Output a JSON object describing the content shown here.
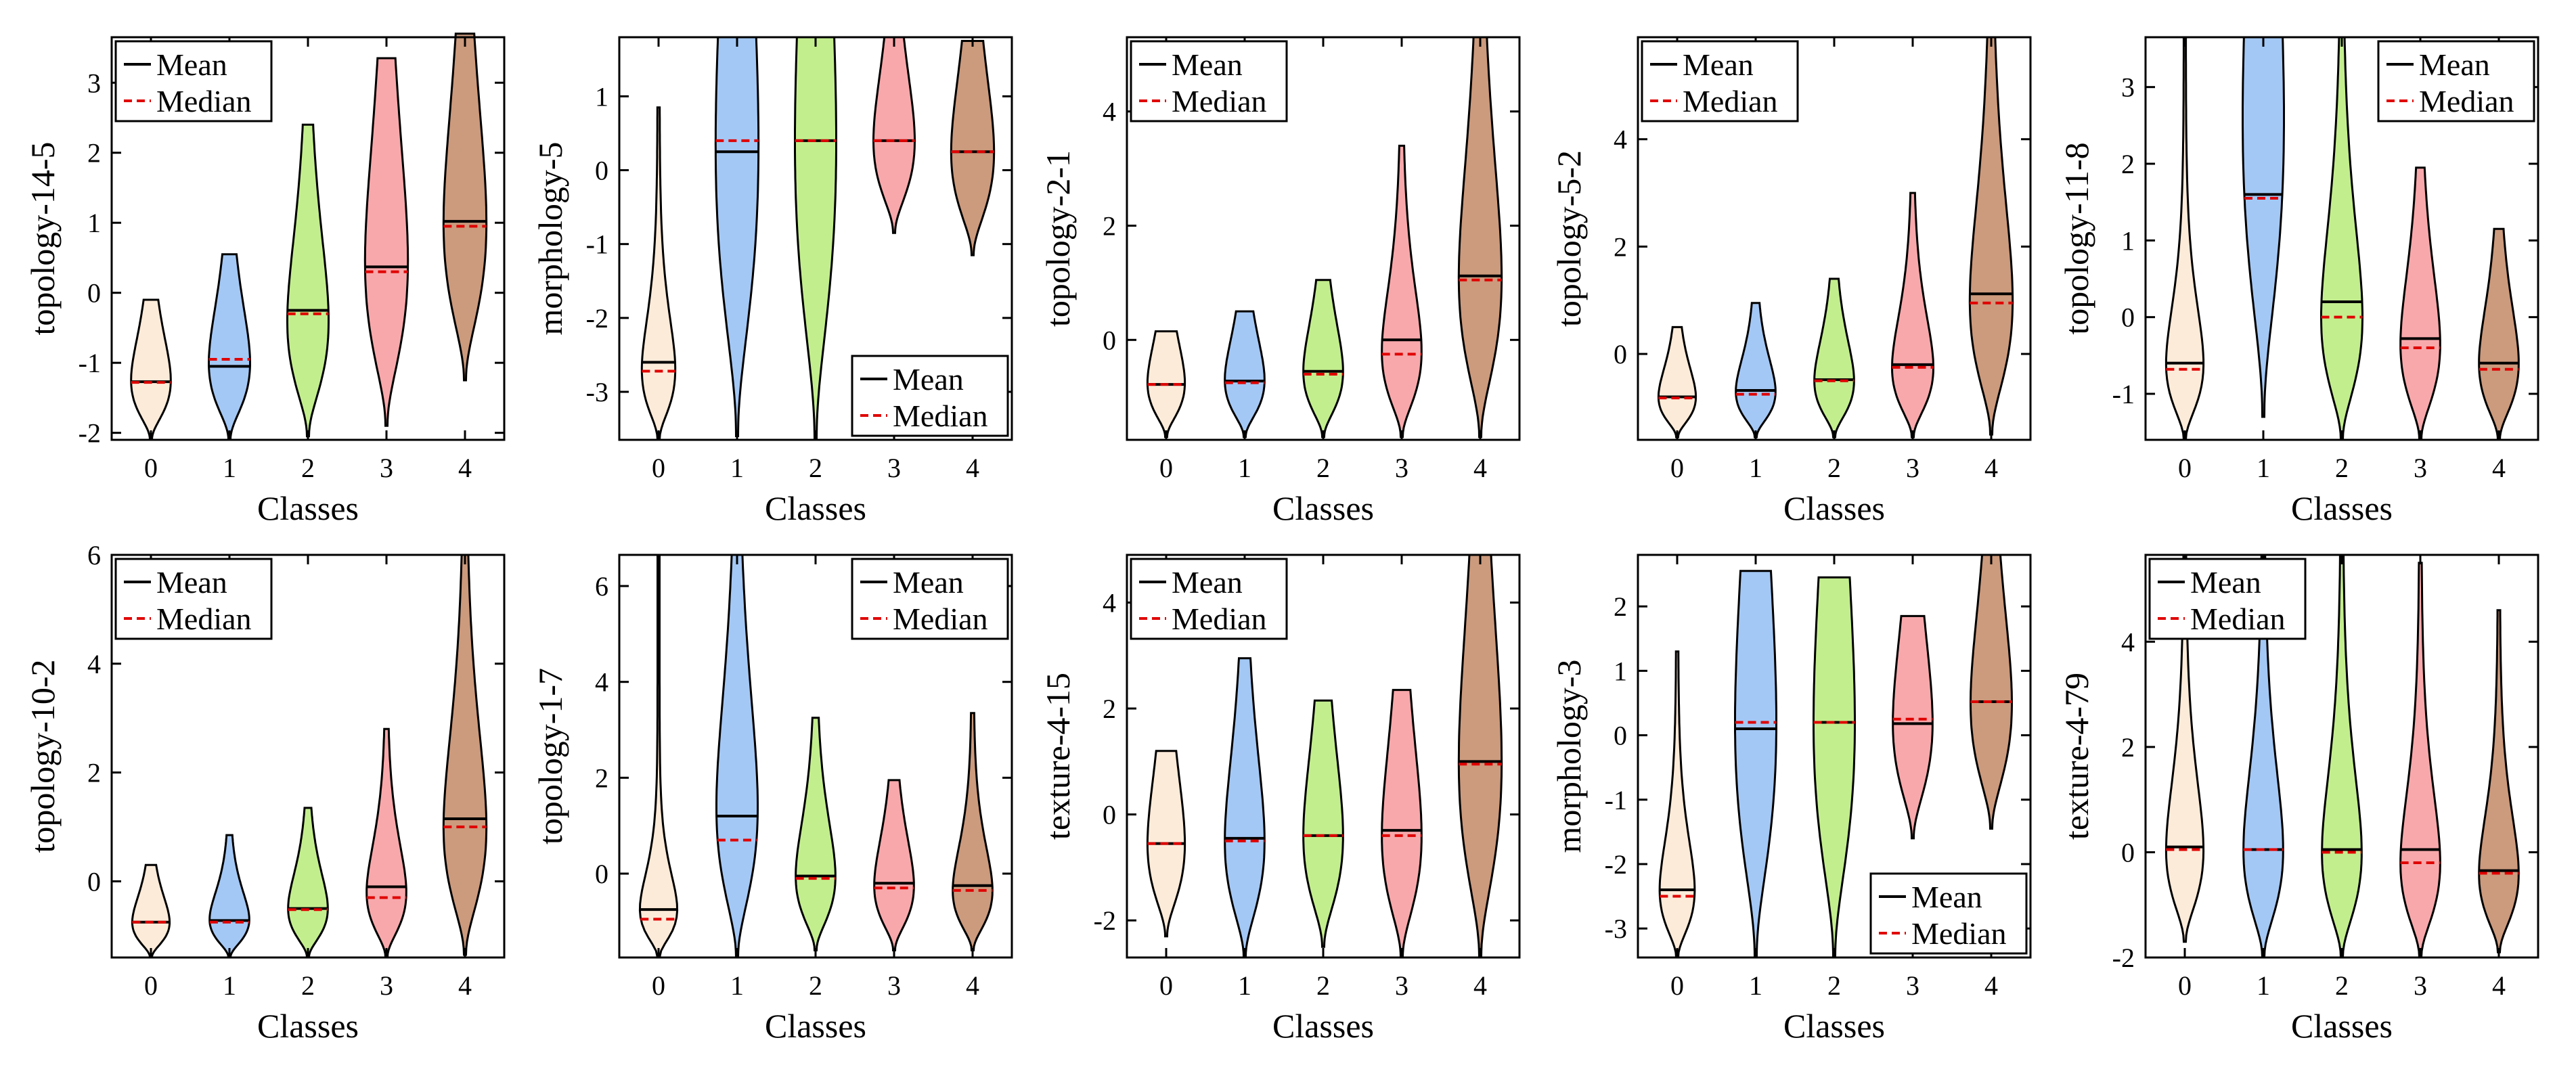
{
  "colors": {
    "class0": "#FDEBD9",
    "class1": "#A4C8F5",
    "class2": "#C3EE8E",
    "class3": "#F8A8AB",
    "class4": "#CC9A7D",
    "mean": "#000000",
    "median": "#E00000"
  },
  "chart_data": [
    {
      "type": "violin",
      "ylabel": "topology-14-5",
      "xlabel": "Classes",
      "categories": [
        "0",
        "1",
        "2",
        "3",
        "4"
      ],
      "ylim": [
        -2.1,
        3.65
      ],
      "yticks": [
        -2,
        -1,
        0,
        1,
        2,
        3
      ],
      "legend_position": "top-left",
      "legend": [
        "Mean",
        "Median"
      ],
      "series": [
        {
          "class": "0",
          "min": -2.1,
          "max": -0.1,
          "mode": -1.25,
          "width": 0.48,
          "skew": 0.4,
          "mean": -1.27,
          "median": -1.28
        },
        {
          "class": "1",
          "min": -2.1,
          "max": 0.55,
          "mode": -1.0,
          "width": 0.5,
          "skew": 0.45,
          "mean": -1.05,
          "median": -0.95
        },
        {
          "class": "2",
          "min": -2.05,
          "max": 2.4,
          "mode": -0.4,
          "width": 0.5,
          "skew": 0.55,
          "mean": -0.25,
          "median": -0.3
        },
        {
          "class": "3",
          "min": -1.9,
          "max": 3.35,
          "mode": 0.45,
          "width": 0.52,
          "skew": 0.5,
          "mean": 0.37,
          "median": 0.3
        },
        {
          "class": "4",
          "min": -1.25,
          "max": 3.7,
          "mode": 1.0,
          "width": 0.52,
          "skew": 0.5,
          "mean": 1.02,
          "median": 0.95
        }
      ]
    },
    {
      "type": "violin",
      "ylabel": "morphology-5",
      "xlabel": "Classes",
      "categories": [
        "0",
        "1",
        "2",
        "3",
        "4"
      ],
      "ylim": [
        -3.65,
        1.8
      ],
      "yticks": [
        -3,
        -2,
        -1,
        0,
        1
      ],
      "legend_position": "bottom-right",
      "legend": [
        "Mean",
        "Median"
      ],
      "series": [
        {
          "class": "0",
          "min": -3.65,
          "max": 0.85,
          "mode": -2.7,
          "width": 0.4,
          "skew": 0.35,
          "mean": -2.6,
          "median": -2.72
        },
        {
          "class": "1",
          "min": -3.6,
          "max": 1.8,
          "mode": 0.35,
          "width": 0.52,
          "skew": 0.5,
          "mean": 0.25,
          "median": 0.4
        },
        {
          "class": "2",
          "min": -3.65,
          "max": 1.8,
          "mode": 0.4,
          "width": 0.5,
          "skew": 0.5,
          "mean": 0.4,
          "median": 0.4
        },
        {
          "class": "3",
          "min": -0.85,
          "max": 1.8,
          "mode": 0.4,
          "width": 0.5,
          "skew": 0.5,
          "mean": 0.4,
          "median": 0.4
        },
        {
          "class": "4",
          "min": -1.15,
          "max": 1.75,
          "mode": 0.25,
          "width": 0.52,
          "skew": 0.5,
          "mean": 0.25,
          "median": 0.25
        }
      ]
    },
    {
      "type": "violin",
      "ylabel": "topology-2-1",
      "xlabel": "Classes",
      "categories": [
        "0",
        "1",
        "2",
        "3",
        "4"
      ],
      "ylim": [
        -1.75,
        5.3
      ],
      "yticks": [
        0,
        2,
        4
      ],
      "legend_position": "top-left",
      "legend": [
        "Mean",
        "Median"
      ],
      "series": [
        {
          "class": "0",
          "min": -1.7,
          "max": 0.15,
          "mode": -0.75,
          "width": 0.45,
          "skew": 0.5,
          "mean": -0.78,
          "median": -0.78
        },
        {
          "class": "1",
          "min": -1.7,
          "max": 0.5,
          "mode": -0.7,
          "width": 0.48,
          "skew": 0.5,
          "mean": -0.72,
          "median": -0.75
        },
        {
          "class": "2",
          "min": -1.7,
          "max": 1.05,
          "mode": -0.55,
          "width": 0.48,
          "skew": 0.5,
          "mean": -0.55,
          "median": -0.6
        },
        {
          "class": "3",
          "min": -1.7,
          "max": 3.4,
          "mode": -0.2,
          "width": 0.48,
          "skew": 0.55,
          "mean": 0.0,
          "median": -0.25
        },
        {
          "class": "4",
          "min": -1.7,
          "max": 5.3,
          "mode": 1.1,
          "width": 0.52,
          "skew": 0.5,
          "mean": 1.12,
          "median": 1.05
        }
      ]
    },
    {
      "type": "violin",
      "ylabel": "topology-5-2",
      "xlabel": "Classes",
      "categories": [
        "0",
        "1",
        "2",
        "3",
        "4"
      ],
      "ylim": [
        -1.6,
        5.9
      ],
      "yticks": [
        0,
        2,
        4
      ],
      "legend_position": "top-left",
      "legend": [
        "Mean",
        "Median"
      ],
      "series": [
        {
          "class": "0",
          "min": -1.55,
          "max": 0.5,
          "mode": -0.8,
          "width": 0.45,
          "skew": 0.5,
          "mean": -0.8,
          "median": -0.82
        },
        {
          "class": "1",
          "min": -1.55,
          "max": 0.95,
          "mode": -0.7,
          "width": 0.48,
          "skew": 0.5,
          "mean": -0.68,
          "median": -0.75
        },
        {
          "class": "2",
          "min": -1.55,
          "max": 1.4,
          "mode": -0.5,
          "width": 0.48,
          "skew": 0.5,
          "mean": -0.48,
          "median": -0.5
        },
        {
          "class": "3",
          "min": -1.55,
          "max": 3.0,
          "mode": -0.25,
          "width": 0.5,
          "skew": 0.55,
          "mean": -0.2,
          "median": -0.25
        },
        {
          "class": "4",
          "min": -1.5,
          "max": 5.9,
          "mode": 1.0,
          "width": 0.52,
          "skew": 0.5,
          "mean": 1.12,
          "median": 0.95
        }
      ]
    },
    {
      "type": "violin",
      "ylabel": "topology-11-8",
      "xlabel": "Classes",
      "categories": [
        "0",
        "1",
        "2",
        "3",
        "4"
      ],
      "ylim": [
        -1.6,
        3.65
      ],
      "yticks": [
        -1,
        0,
        1,
        2,
        3
      ],
      "legend_position": "top-right",
      "legend": [
        "Mean",
        "Median"
      ],
      "series": [
        {
          "class": "0",
          "min": -1.6,
          "max": 3.65,
          "mode": -0.6,
          "width": 0.45,
          "skew": 0.5,
          "mean": -0.6,
          "median": -0.68
        },
        {
          "class": "1",
          "min": -1.3,
          "max": 3.65,
          "mode": 2.6,
          "width": 0.5,
          "skew": 0.5,
          "mean": 1.6,
          "median": 1.55
        },
        {
          "class": "2",
          "min": -1.6,
          "max": 3.65,
          "mode": 0.0,
          "width": 0.5,
          "skew": 0.5,
          "mean": 0.2,
          "median": 0.0
        },
        {
          "class": "3",
          "min": -1.6,
          "max": 1.95,
          "mode": -0.35,
          "width": 0.48,
          "skew": 0.55,
          "mean": -0.28,
          "median": -0.4
        },
        {
          "class": "4",
          "min": -1.6,
          "max": 1.15,
          "mode": -0.6,
          "width": 0.48,
          "skew": 0.55,
          "mean": -0.6,
          "median": -0.68
        }
      ]
    },
    {
      "type": "violin",
      "ylabel": "topology-10-2",
      "xlabel": "Classes",
      "categories": [
        "0",
        "1",
        "2",
        "3",
        "4"
      ],
      "ylim": [
        -1.4,
        6.0
      ],
      "yticks": [
        0,
        2,
        4,
        6
      ],
      "legend_position": "top-left",
      "legend": [
        "Mean",
        "Median"
      ],
      "series": [
        {
          "class": "0",
          "min": -1.4,
          "max": 0.3,
          "mode": -0.75,
          "width": 0.45,
          "skew": 0.5,
          "mean": -0.75,
          "median": -0.75
        },
        {
          "class": "1",
          "min": -1.4,
          "max": 0.85,
          "mode": -0.7,
          "width": 0.48,
          "skew": 0.5,
          "mean": -0.72,
          "median": -0.75
        },
        {
          "class": "2",
          "min": -1.4,
          "max": 1.35,
          "mode": -0.5,
          "width": 0.48,
          "skew": 0.5,
          "mean": -0.5,
          "median": -0.52
        },
        {
          "class": "3",
          "min": -1.4,
          "max": 2.8,
          "mode": -0.2,
          "width": 0.48,
          "skew": 0.55,
          "mean": -0.1,
          "median": -0.3
        },
        {
          "class": "4",
          "min": -1.35,
          "max": 6.0,
          "mode": 1.0,
          "width": 0.52,
          "skew": 0.5,
          "mean": 1.15,
          "median": 1.0
        }
      ]
    },
    {
      "type": "violin",
      "ylabel": "topology-1-7",
      "xlabel": "Classes",
      "categories": [
        "0",
        "1",
        "2",
        "3",
        "4"
      ],
      "ylim": [
        -1.75,
        6.65
      ],
      "yticks": [
        0,
        2,
        4,
        6
      ],
      "legend_position": "top-right",
      "legend": [
        "Mean",
        "Median"
      ],
      "series": [
        {
          "class": "0",
          "min": -1.75,
          "max": 6.65,
          "mode": -0.9,
          "width": 0.45,
          "skew": 0.5,
          "mean": -0.75,
          "median": -0.95
        },
        {
          "class": "1",
          "min": -1.75,
          "max": 6.65,
          "mode": 1.4,
          "width": 0.5,
          "skew": 0.5,
          "mean": 1.2,
          "median": 0.7
        },
        {
          "class": "2",
          "min": -1.6,
          "max": 3.25,
          "mode": -0.05,
          "width": 0.48,
          "skew": 0.55,
          "mean": -0.05,
          "median": -0.1
        },
        {
          "class": "3",
          "min": -1.6,
          "max": 1.95,
          "mode": -0.25,
          "width": 0.48,
          "skew": 0.55,
          "mean": -0.2,
          "median": -0.3
        },
        {
          "class": "4",
          "min": -1.6,
          "max": 3.35,
          "mode": -0.35,
          "width": 0.48,
          "skew": 0.55,
          "mean": -0.25,
          "median": -0.35
        }
      ]
    },
    {
      "type": "violin",
      "ylabel": "texture-4-15",
      "xlabel": "Classes",
      "categories": [
        "0",
        "1",
        "2",
        "3",
        "4"
      ],
      "ylim": [
        -2.7,
        4.9
      ],
      "yticks": [
        -2,
        0,
        2,
        4
      ],
      "legend_position": "top-left",
      "legend": [
        "Mean",
        "Median"
      ],
      "series": [
        {
          "class": "0",
          "min": -2.3,
          "max": 1.2,
          "mode": -0.55,
          "width": 0.45,
          "skew": 0.5,
          "mean": -0.55,
          "median": -0.55
        },
        {
          "class": "1",
          "min": -2.7,
          "max": 2.95,
          "mode": -0.5,
          "width": 0.48,
          "skew": 0.5,
          "mean": -0.45,
          "median": -0.5
        },
        {
          "class": "2",
          "min": -2.5,
          "max": 2.15,
          "mode": -0.4,
          "width": 0.48,
          "skew": 0.5,
          "mean": -0.4,
          "median": -0.4
        },
        {
          "class": "3",
          "min": -2.7,
          "max": 2.35,
          "mode": -0.4,
          "width": 0.48,
          "skew": 0.5,
          "mean": -0.3,
          "median": -0.4
        },
        {
          "class": "4",
          "min": -2.7,
          "max": 4.9,
          "mode": 1.0,
          "width": 0.52,
          "skew": 0.5,
          "mean": 1.0,
          "median": 0.95
        }
      ]
    },
    {
      "type": "violin",
      "ylabel": "morphology-3",
      "xlabel": "Classes",
      "categories": [
        "0",
        "1",
        "2",
        "3",
        "4"
      ],
      "ylim": [
        -3.45,
        2.8
      ],
      "yticks": [
        -3,
        -2,
        -1,
        0,
        1,
        2
      ],
      "legend_position": "bottom-right",
      "legend": [
        "Mean",
        "Median"
      ],
      "series": [
        {
          "class": "0",
          "min": -3.45,
          "max": 1.3,
          "mode": -2.4,
          "width": 0.42,
          "skew": 0.4,
          "mean": -2.4,
          "median": -2.5
        },
        {
          "class": "1",
          "min": -3.45,
          "max": 2.55,
          "mode": 0.2,
          "width": 0.5,
          "skew": 0.5,
          "mean": 0.1,
          "median": 0.2
        },
        {
          "class": "2",
          "min": -3.45,
          "max": 2.45,
          "mode": 0.2,
          "width": 0.5,
          "skew": 0.5,
          "mean": 0.2,
          "median": 0.2
        },
        {
          "class": "3",
          "min": -1.6,
          "max": 1.85,
          "mode": 0.2,
          "width": 0.48,
          "skew": 0.5,
          "mean": 0.18,
          "median": 0.25
        },
        {
          "class": "4",
          "min": -1.45,
          "max": 2.8,
          "mode": 0.5,
          "width": 0.5,
          "skew": 0.5,
          "mean": 0.52,
          "median": 0.52
        }
      ]
    },
    {
      "type": "violin",
      "ylabel": "texture-4-79",
      "xlabel": "Classes",
      "categories": [
        "0",
        "1",
        "2",
        "3",
        "4"
      ],
      "ylim": [
        -2.0,
        5.65
      ],
      "yticks": [
        -2,
        0,
        2,
        4
      ],
      "legend_position": "top-left",
      "legend": [
        "Mean",
        "Median"
      ],
      "series": [
        {
          "class": "0",
          "min": -1.7,
          "max": 5.65,
          "mode": 0.05,
          "width": 0.45,
          "skew": 0.5,
          "mean": 0.1,
          "median": 0.05
        },
        {
          "class": "1",
          "min": -2.0,
          "max": 5.65,
          "mode": 0.05,
          "width": 0.48,
          "skew": 0.5,
          "mean": 0.05,
          "median": 0.05
        },
        {
          "class": "2",
          "min": -2.0,
          "max": 5.65,
          "mode": 0.0,
          "width": 0.48,
          "skew": 0.5,
          "mean": 0.05,
          "median": 0.0
        },
        {
          "class": "3",
          "min": -2.0,
          "max": 5.5,
          "mode": -0.2,
          "width": 0.48,
          "skew": 0.5,
          "mean": 0.05,
          "median": -0.2
        },
        {
          "class": "4",
          "min": -1.9,
          "max": 4.6,
          "mode": -0.4,
          "width": 0.48,
          "skew": 0.5,
          "mean": -0.35,
          "median": -0.4
        }
      ]
    }
  ]
}
